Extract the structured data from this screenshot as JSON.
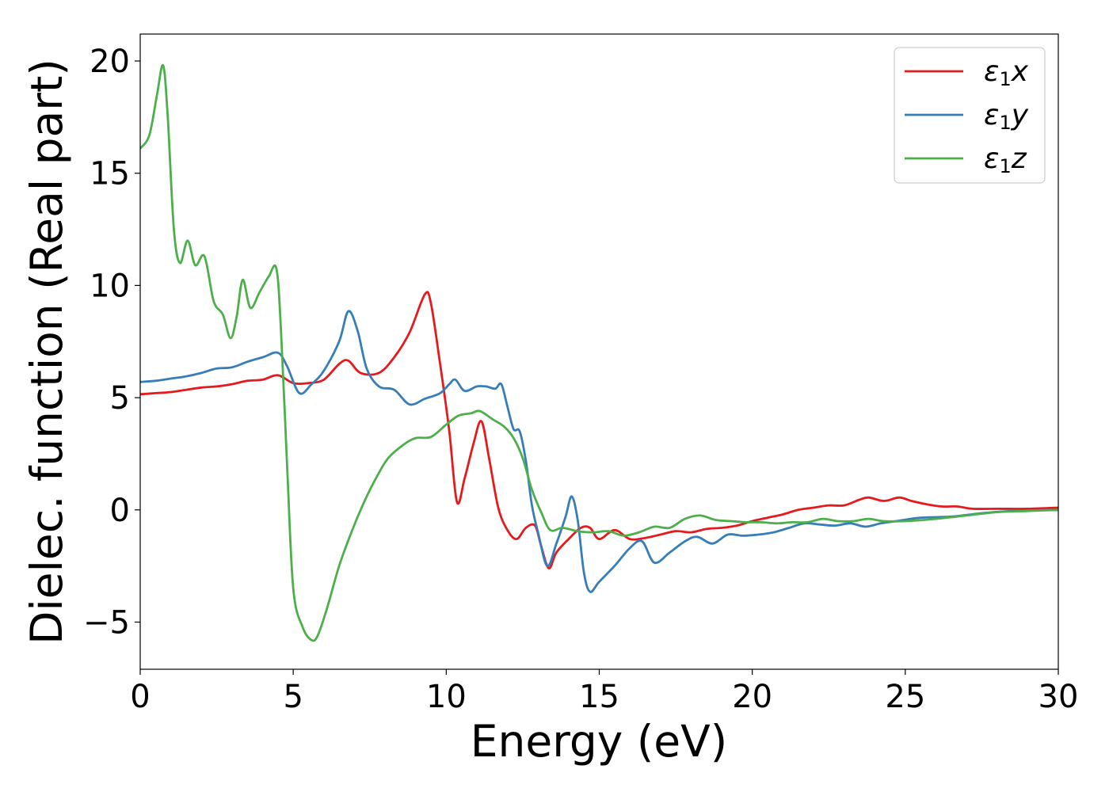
{
  "chart_data": {
    "type": "line",
    "xlabel": "Energy (eV)",
    "ylabel": "Dielec. function (Real part)",
    "xlim": [
      0,
      30
    ],
    "ylim": [
      -7.1,
      21.2
    ],
    "xticks": [
      0,
      5,
      10,
      15,
      20,
      25,
      30
    ],
    "xtick_labels": [
      "0",
      "5",
      "10",
      "15",
      "20",
      "25",
      "30"
    ],
    "yticks": [
      -5,
      0,
      5,
      10,
      15,
      20
    ],
    "ytick_labels": [
      "−5",
      "0",
      "5",
      "10",
      "15",
      "20"
    ],
    "grid": false,
    "legend_position": "top-right",
    "series": [
      {
        "name": "ε1x",
        "symbol": "ε",
        "subscript": "1",
        "suffix": "x",
        "color": "#e41a1c",
        "points": [
          [
            0,
            5.15
          ],
          [
            0.5,
            5.2
          ],
          [
            1,
            5.25
          ],
          [
            1.5,
            5.35
          ],
          [
            2,
            5.45
          ],
          [
            2.5,
            5.5
          ],
          [
            3,
            5.6
          ],
          [
            3.5,
            5.75
          ],
          [
            4,
            5.8
          ],
          [
            4.5,
            6.0
          ],
          [
            5,
            5.65
          ],
          [
            5.5,
            5.65
          ],
          [
            6,
            5.8
          ],
          [
            6.5,
            6.5
          ],
          [
            6.8,
            6.65
          ],
          [
            7.2,
            6.1
          ],
          [
            7.8,
            6.1
          ],
          [
            8.3,
            6.8
          ],
          [
            8.8,
            7.9
          ],
          [
            9.3,
            9.6
          ],
          [
            9.5,
            9.2
          ],
          [
            9.8,
            6.5
          ],
          [
            10.1,
            3.5
          ],
          [
            10.35,
            0.35
          ],
          [
            10.6,
            1.4
          ],
          [
            10.9,
            3.0
          ],
          [
            11.15,
            3.95
          ],
          [
            11.4,
            2.3
          ],
          [
            11.7,
            0.1
          ],
          [
            12.0,
            -0.9
          ],
          [
            12.3,
            -1.3
          ],
          [
            12.6,
            -0.8
          ],
          [
            12.9,
            -0.7
          ],
          [
            13.1,
            -1.6
          ],
          [
            13.35,
            -2.6
          ],
          [
            13.6,
            -1.9
          ],
          [
            14.0,
            -1.3
          ],
          [
            14.4,
            -0.8
          ],
          [
            14.7,
            -0.8
          ],
          [
            15.0,
            -1.3
          ],
          [
            15.5,
            -0.9
          ],
          [
            16.0,
            -1.3
          ],
          [
            16.5,
            -1.25
          ],
          [
            17.0,
            -1.1
          ],
          [
            17.5,
            -0.95
          ],
          [
            18.0,
            -1.0
          ],
          [
            18.5,
            -0.85
          ],
          [
            19.0,
            -0.8
          ],
          [
            19.5,
            -0.7
          ],
          [
            20.0,
            -0.5
          ],
          [
            20.5,
            -0.35
          ],
          [
            21.0,
            -0.2
          ],
          [
            21.5,
            0.0
          ],
          [
            22.0,
            0.1
          ],
          [
            22.5,
            0.2
          ],
          [
            23.0,
            0.2
          ],
          [
            23.5,
            0.45
          ],
          [
            23.8,
            0.55
          ],
          [
            24.3,
            0.4
          ],
          [
            24.8,
            0.55
          ],
          [
            25.2,
            0.4
          ],
          [
            25.7,
            0.25
          ],
          [
            26.2,
            0.15
          ],
          [
            26.7,
            0.15
          ],
          [
            27.2,
            0.05
          ],
          [
            28.0,
            0.05
          ],
          [
            29.0,
            0.05
          ],
          [
            30.0,
            0.1
          ]
        ]
      },
      {
        "name": "ε1y",
        "symbol": "ε",
        "subscript": "1",
        "suffix": "y",
        "color": "#377eb8",
        "points": [
          [
            0,
            5.7
          ],
          [
            0.5,
            5.75
          ],
          [
            1,
            5.85
          ],
          [
            1.5,
            5.95
          ],
          [
            2,
            6.1
          ],
          [
            2.5,
            6.3
          ],
          [
            3,
            6.35
          ],
          [
            3.5,
            6.6
          ],
          [
            4,
            6.8
          ],
          [
            4.5,
            7.0
          ],
          [
            4.8,
            6.4
          ],
          [
            5.2,
            5.2
          ],
          [
            5.6,
            5.6
          ],
          [
            6,
            6.2
          ],
          [
            6.5,
            7.5
          ],
          [
            6.8,
            8.85
          ],
          [
            7.1,
            8.0
          ],
          [
            7.4,
            6.3
          ],
          [
            7.8,
            5.5
          ],
          [
            8.3,
            5.35
          ],
          [
            8.8,
            4.7
          ],
          [
            9.3,
            4.95
          ],
          [
            9.8,
            5.2
          ],
          [
            10.1,
            5.6
          ],
          [
            10.3,
            5.8
          ],
          [
            10.6,
            5.3
          ],
          [
            11.0,
            5.5
          ],
          [
            11.3,
            5.5
          ],
          [
            11.6,
            5.4
          ],
          [
            11.8,
            5.6
          ],
          [
            12.0,
            4.6
          ],
          [
            12.2,
            3.6
          ],
          [
            12.4,
            3.5
          ],
          [
            12.6,
            2.2
          ],
          [
            12.8,
            0.2
          ],
          [
            13.0,
            -1.0
          ],
          [
            13.3,
            -2.5
          ],
          [
            13.6,
            -1.5
          ],
          [
            13.9,
            -0.3
          ],
          [
            14.1,
            0.6
          ],
          [
            14.3,
            -0.5
          ],
          [
            14.5,
            -2.8
          ],
          [
            14.7,
            -3.65
          ],
          [
            15.0,
            -3.2
          ],
          [
            15.5,
            -2.5
          ],
          [
            16.0,
            -1.7
          ],
          [
            16.4,
            -1.4
          ],
          [
            16.8,
            -2.35
          ],
          [
            17.3,
            -1.9
          ],
          [
            17.8,
            -1.4
          ],
          [
            18.2,
            -1.2
          ],
          [
            18.7,
            -1.5
          ],
          [
            19.2,
            -1.1
          ],
          [
            19.7,
            -1.15
          ],
          [
            20.2,
            -1.1
          ],
          [
            20.7,
            -1.0
          ],
          [
            21.2,
            -0.8
          ],
          [
            21.7,
            -0.6
          ],
          [
            22.2,
            -0.65
          ],
          [
            22.7,
            -0.7
          ],
          [
            23.2,
            -0.6
          ],
          [
            23.7,
            -0.75
          ],
          [
            24.2,
            -0.6
          ],
          [
            24.7,
            -0.5
          ],
          [
            25.5,
            -0.35
          ],
          [
            26.5,
            -0.3
          ],
          [
            27.5,
            -0.15
          ],
          [
            28.5,
            -0.05
          ],
          [
            30.0,
            0.0
          ]
        ]
      },
      {
        "name": "ε1z",
        "symbol": "ε",
        "subscript": "1",
        "suffix": "z",
        "color": "#4daf4a",
        "points": [
          [
            0,
            16.1
          ],
          [
            0.3,
            16.7
          ],
          [
            0.55,
            18.5
          ],
          [
            0.75,
            19.8
          ],
          [
            0.9,
            17.5
          ],
          [
            1.1,
            12.5
          ],
          [
            1.3,
            11.0
          ],
          [
            1.55,
            12.0
          ],
          [
            1.8,
            10.9
          ],
          [
            2.1,
            11.3
          ],
          [
            2.4,
            9.3
          ],
          [
            2.7,
            8.7
          ],
          [
            2.95,
            7.65
          ],
          [
            3.15,
            8.6
          ],
          [
            3.35,
            10.25
          ],
          [
            3.6,
            9.0
          ],
          [
            3.9,
            9.7
          ],
          [
            4.2,
            10.4
          ],
          [
            4.45,
            10.75
          ],
          [
            4.6,
            8.0
          ],
          [
            4.8,
            2.0
          ],
          [
            5.0,
            -3.5
          ],
          [
            5.3,
            -5.2
          ],
          [
            5.6,
            -5.8
          ],
          [
            5.8,
            -5.6
          ],
          [
            6.1,
            -4.4
          ],
          [
            6.5,
            -2.5
          ],
          [
            6.9,
            -1.0
          ],
          [
            7.3,
            0.3
          ],
          [
            7.7,
            1.4
          ],
          [
            8.1,
            2.3
          ],
          [
            8.6,
            2.9
          ],
          [
            9.0,
            3.2
          ],
          [
            9.5,
            3.25
          ],
          [
            10.0,
            3.8
          ],
          [
            10.4,
            4.2
          ],
          [
            10.8,
            4.3
          ],
          [
            11.1,
            4.4
          ],
          [
            11.5,
            4.05
          ],
          [
            11.9,
            3.7
          ],
          [
            12.2,
            3.2
          ],
          [
            12.5,
            2.3
          ],
          [
            12.8,
            0.9
          ],
          [
            13.1,
            -0.1
          ],
          [
            13.4,
            -0.9
          ],
          [
            13.8,
            -0.8
          ],
          [
            14.3,
            -0.95
          ],
          [
            14.8,
            -1.0
          ],
          [
            15.3,
            -0.95
          ],
          [
            15.8,
            -1.15
          ],
          [
            16.3,
            -1.0
          ],
          [
            16.8,
            -0.75
          ],
          [
            17.3,
            -0.8
          ],
          [
            17.8,
            -0.4
          ],
          [
            18.3,
            -0.25
          ],
          [
            18.8,
            -0.45
          ],
          [
            19.3,
            -0.5
          ],
          [
            19.8,
            -0.55
          ],
          [
            20.3,
            -0.55
          ],
          [
            20.8,
            -0.6
          ],
          [
            21.3,
            -0.55
          ],
          [
            21.8,
            -0.55
          ],
          [
            22.3,
            -0.4
          ],
          [
            22.8,
            -0.5
          ],
          [
            23.3,
            -0.5
          ],
          [
            23.8,
            -0.4
          ],
          [
            24.3,
            -0.5
          ],
          [
            25.0,
            -0.5
          ],
          [
            26.0,
            -0.4
          ],
          [
            27.0,
            -0.25
          ],
          [
            28.0,
            -0.1
          ],
          [
            29.0,
            -0.05
          ],
          [
            30.0,
            0.0
          ]
        ]
      }
    ]
  }
}
